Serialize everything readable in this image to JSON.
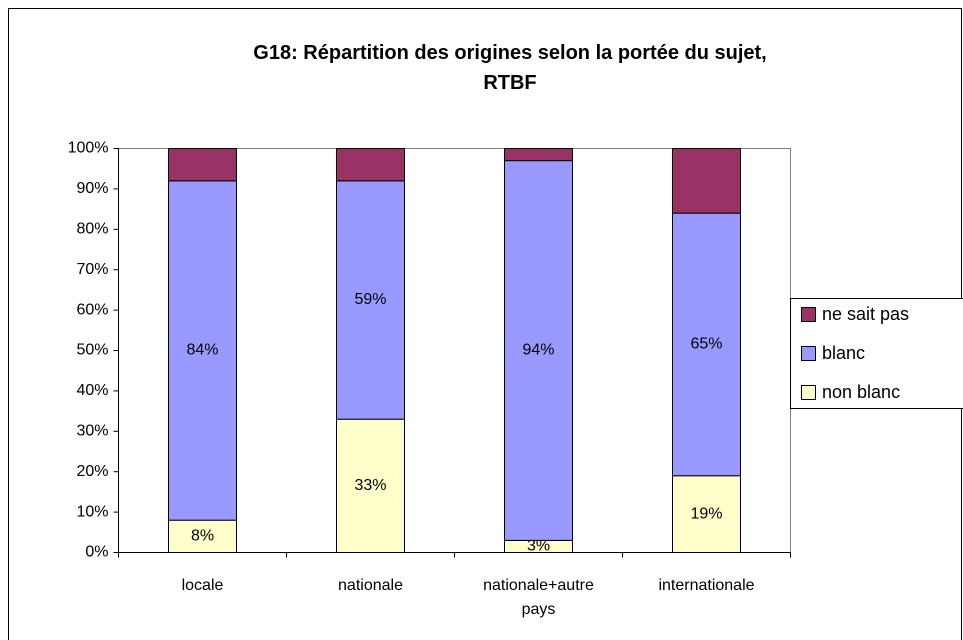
{
  "chart_data": {
    "type": "stacked_bar",
    "title": "G18: Répartition des origines selon la portée du sujet,\nRTBF",
    "categories": [
      "locale",
      "nationale",
      "nationale+autre pays",
      "internationale"
    ],
    "series": [
      {
        "name": "non blanc",
        "color": "#ffffcc",
        "values": [
          8,
          33,
          3,
          19
        ],
        "value_labels": [
          "8%",
          "33%",
          "3%",
          "19%"
        ]
      },
      {
        "name": "blanc",
        "color": "#9999ff",
        "values": [
          84,
          59,
          94,
          65
        ],
        "value_labels": [
          "84%",
          "59%",
          "94%",
          "65%"
        ]
      },
      {
        "name": "ne sait pas",
        "color": "#993366",
        "values": [
          8,
          8,
          3,
          16
        ]
      }
    ],
    "ylim": [
      0,
      100
    ],
    "yticks": [
      {
        "value": 0,
        "label": "0%"
      },
      {
        "value": 10,
        "label": "10%"
      },
      {
        "value": 20,
        "label": "20%"
      },
      {
        "value": 30,
        "label": "30%"
      },
      {
        "value": 40,
        "label": "40%"
      },
      {
        "value": 50,
        "label": "50%"
      },
      {
        "value": 60,
        "label": "60%"
      },
      {
        "value": 70,
        "label": "70%"
      },
      {
        "value": 80,
        "label": "80%"
      },
      {
        "value": 90,
        "label": "90%"
      },
      {
        "value": 100,
        "label": "100%"
      }
    ],
    "legend": "right"
  }
}
